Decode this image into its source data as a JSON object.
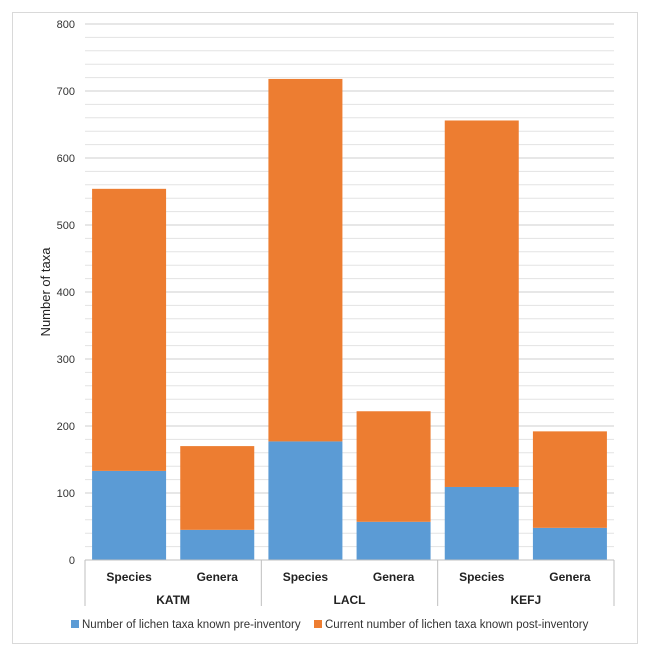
{
  "chart_data": {
    "type": "bar",
    "stacked": true,
    "title": "",
    "ylabel": "Number of taxa",
    "ylim": [
      0,
      800
    ],
    "yticks": [
      0,
      100,
      200,
      300,
      400,
      500,
      600,
      700,
      800
    ],
    "minor_gridlines_step": 20,
    "groups": [
      "KATM",
      "LACL",
      "KEFJ"
    ],
    "categories": [
      "Species",
      "Genera",
      "Species",
      "Genera",
      "Species",
      "Genera"
    ],
    "series": [
      {
        "name": "Number of lichen taxa known pre-inventory",
        "color": "#5b9bd5",
        "values": [
          133,
          45,
          177,
          57,
          109,
          48
        ]
      },
      {
        "name": "Current number of lichen taxa known post-inventory",
        "color": "#ed7d31",
        "values": [
          421,
          125,
          541,
          165,
          547,
          144
        ]
      }
    ],
    "legend_position": "bottom",
    "grid": true
  }
}
